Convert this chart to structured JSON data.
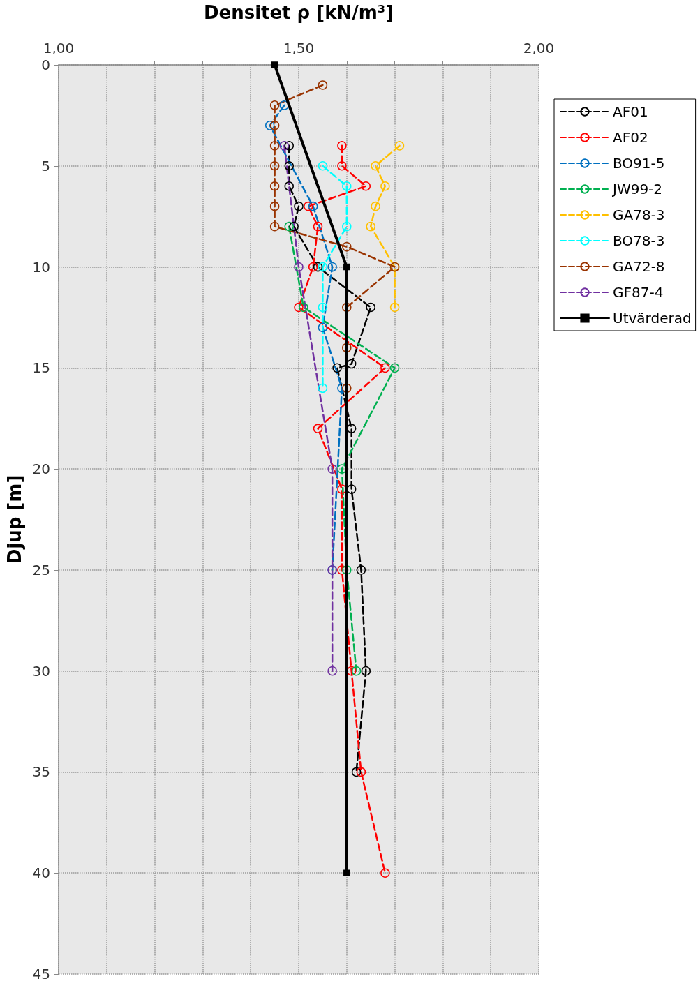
{
  "chart_data": {
    "type": "line",
    "xlabel": "Densitet ρ [kN/m³]",
    "ylabel": "Djup [m]",
    "xlim": [
      1,
      2
    ],
    "xticks": [
      {
        "value": 1,
        "label": "1,00"
      },
      {
        "value": 1.1,
        "label": null
      },
      {
        "value": 1.2,
        "label": null
      },
      {
        "value": 1.3,
        "label": null
      },
      {
        "value": 1.4,
        "label": null
      },
      {
        "value": 1.5,
        "label": "1,50"
      },
      {
        "value": 1.6,
        "label": null
      },
      {
        "value": 1.7,
        "label": null
      },
      {
        "value": 1.8,
        "label": null
      },
      {
        "value": 1.9,
        "label": null
      },
      {
        "value": 2,
        "label": "2,00"
      }
    ],
    "ylim": [
      45,
      0
    ],
    "yticks": [
      0,
      5,
      10,
      15,
      20,
      25,
      30,
      35,
      40,
      45
    ],
    "grid": true,
    "legend": "right",
    "marker": "circle",
    "line_style": "dashed",
    "series": [
      {
        "name": "AF01",
        "color": "#000000",
        "x": [
          1.48,
          1.48,
          1.48,
          1.5,
          1.49,
          1.54,
          1.65,
          1.61,
          1.58,
          1.61,
          1.61,
          1.63,
          1.64,
          1.62
        ],
        "values": [
          4,
          5,
          6,
          7,
          8,
          10,
          12,
          14.8,
          15,
          18,
          21,
          25,
          30,
          35
        ]
      },
      {
        "name": "AF02",
        "color": "#ff0000",
        "x": [
          1.59,
          1.59,
          1.64,
          1.52,
          1.54,
          1.53,
          1.5,
          1.68,
          1.54,
          1.59,
          1.59,
          1.61,
          1.63,
          1.68
        ],
        "values": [
          4,
          5,
          6,
          7,
          8,
          10,
          12,
          15,
          18,
          21,
          25,
          30,
          35,
          40
        ]
      },
      {
        "name": "BO91-5",
        "color": "#0070c0",
        "x": [
          1.47,
          1.44,
          1.53,
          1.57,
          1.55,
          1.59,
          1.57
        ],
        "values": [
          2,
          3,
          7,
          10,
          13,
          16,
          25
        ]
      },
      {
        "name": "JW99-2",
        "color": "#00b050",
        "x": [
          1.48,
          1.51,
          1.7,
          1.59,
          1.6,
          1.62
        ],
        "values": [
          8,
          12,
          15,
          20,
          25,
          30
        ]
      },
      {
        "name": "GA78-3",
        "color": "#ffc000",
        "x": [
          1.71,
          1.66,
          1.68,
          1.66,
          1.65,
          1.7,
          1.7
        ],
        "values": [
          4,
          5,
          6,
          7,
          8,
          10,
          12
        ]
      },
      {
        "name": "BO78-3",
        "color": "#00ffff",
        "x": [
          1.55,
          1.6,
          1.6,
          1.55,
          1.55,
          1.55
        ],
        "values": [
          5,
          6,
          8,
          10,
          12,
          16
        ]
      },
      {
        "name": "GA72-8",
        "color": "#993300",
        "x": [
          1.55,
          1.45,
          1.45,
          1.45,
          1.45,
          1.45,
          1.45,
          1.45,
          1.6,
          1.7,
          1.6,
          1.6,
          1.6
        ],
        "values": [
          1,
          2,
          3,
          4,
          5,
          6,
          7,
          8,
          9,
          10,
          12,
          14,
          16
        ]
      },
      {
        "name": "GF87-4",
        "color": "#7030a0",
        "x": [
          1.47,
          1.5,
          1.57,
          1.57,
          1.57
        ],
        "values": [
          4,
          10,
          20,
          25,
          30
        ]
      },
      {
        "name": "Utvärderad",
        "color": "#000000",
        "type": "line",
        "line_style": "solid",
        "marker": "square",
        "x": [
          1.45,
          1.6,
          1.6
        ],
        "values": [
          0,
          10,
          40
        ]
      }
    ]
  }
}
